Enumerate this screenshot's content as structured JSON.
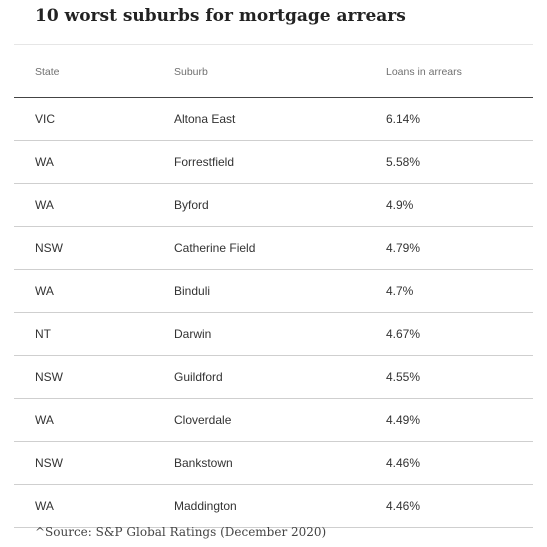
{
  "title": "10 worst suburbs for mortgage arrears",
  "table": {
    "headers": {
      "state": "State",
      "suburb": "Suburb",
      "loans": "Loans in arrears"
    },
    "rows": [
      {
        "state": "VIC",
        "suburb": "Altona East",
        "loans": "6.14%"
      },
      {
        "state": "WA",
        "suburb": "Forrestfield",
        "loans": "5.58%"
      },
      {
        "state": "WA",
        "suburb": "Byford",
        "loans": "4.9%"
      },
      {
        "state": "NSW",
        "suburb": "Catherine Field",
        "loans": "4.79%"
      },
      {
        "state": "WA",
        "suburb": "Binduli",
        "loans": "4.7%"
      },
      {
        "state": "NT",
        "suburb": "Darwin",
        "loans": "4.67%"
      },
      {
        "state": "NSW",
        "suburb": "Guildford",
        "loans": "4.55%"
      },
      {
        "state": "WA",
        "suburb": "Cloverdale",
        "loans": "4.49%"
      },
      {
        "state": "NSW",
        "suburb": "Bankstown",
        "loans": "4.46%"
      },
      {
        "state": "WA",
        "suburb": "Maddington",
        "loans": "4.46%"
      }
    ]
  },
  "source": "^Source: S&P Global Ratings (December 2020)"
}
